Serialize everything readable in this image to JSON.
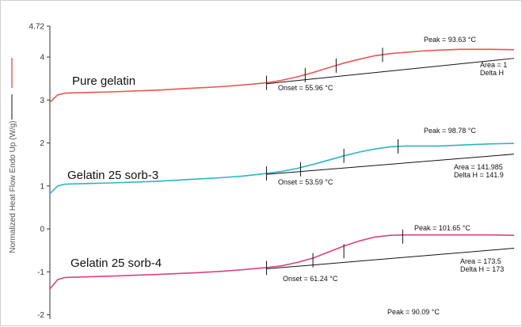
{
  "colors": {
    "pure_gelatin": "#e8564f",
    "sorb3": "#2bb5c4",
    "sorb4": "#e0407e",
    "baseline": "#111111"
  },
  "chart_data": {
    "type": "line",
    "ylabel": "Normalized Heat Flow Endo Up (W/g)",
    "ylim": [
      -2.1,
      4.72
    ],
    "y_ticks": [
      "4.72",
      "4",
      "3",
      "2",
      "1",
      "0",
      "-1",
      "-2"
    ],
    "y_tick_values": [
      4.72,
      4,
      3,
      2,
      1,
      0,
      -1,
      -2
    ],
    "x": [
      0,
      5,
      10,
      40,
      70,
      95,
      110,
      125,
      140,
      150,
      160,
      170,
      180,
      190,
      200,
      210,
      220,
      230,
      240,
      250,
      265,
      285,
      300
    ],
    "series": [
      {
        "label": "Pure gelatin",
        "color_key": "pure_gelatin",
        "values": [
          2.95,
          3.12,
          3.16,
          3.19,
          3.23,
          3.28,
          3.31,
          3.35,
          3.4,
          3.46,
          3.54,
          3.64,
          3.75,
          3.86,
          3.95,
          4.03,
          4.08,
          4.11,
          4.14,
          4.16,
          4.18,
          4.18,
          4.17
        ],
        "baseline": {
          "x": [
            140,
            300
          ],
          "y": [
            3.38,
            3.97
          ]
        },
        "markers": [
          {
            "x": 140,
            "y": 3.4
          },
          {
            "x": 165,
            "y": 3.58
          },
          {
            "x": 185,
            "y": 3.8
          },
          {
            "x": 215,
            "y": 4.05
          }
        ],
        "onset": {
          "label": "Onset = 55.96 °C"
        },
        "peak": {
          "label": "Peak = 93.63 °C"
        },
        "area": {
          "label": "Area = 1"
        },
        "delta_h": {
          "label": "Delta H"
        }
      },
      {
        "label": "Gelatin 25 sorb-3",
        "color_key": "sorb3",
        "values": [
          0.82,
          1.0,
          1.04,
          1.07,
          1.11,
          1.16,
          1.19,
          1.23,
          1.29,
          1.34,
          1.41,
          1.5,
          1.6,
          1.7,
          1.79,
          1.86,
          1.91,
          1.93,
          1.93,
          1.93,
          1.95,
          1.98,
          1.99
        ],
        "baseline": {
          "x": [
            140,
            300
          ],
          "y": [
            1.27,
            1.74
          ]
        },
        "markers": [
          {
            "x": 140,
            "y": 1.29
          },
          {
            "x": 162,
            "y": 1.39
          },
          {
            "x": 190,
            "y": 1.7
          },
          {
            "x": 225,
            "y": 1.92
          }
        ],
        "onset": {
          "label": "Onset = 53.59 °C"
        },
        "peak": {
          "label": "Peak = 98.78 °C"
        },
        "area": {
          "label": "Area = 141.985"
        },
        "delta_h": {
          "label": "Delta H = 141.9"
        }
      },
      {
        "label": "Gelatin 25 sorb-4",
        "color_key": "sorb4",
        "values": [
          -1.4,
          -1.18,
          -1.13,
          -1.1,
          -1.06,
          -1.02,
          -0.99,
          -0.95,
          -0.9,
          -0.86,
          -0.78,
          -0.68,
          -0.54,
          -0.4,
          -0.28,
          -0.19,
          -0.15,
          -0.14,
          -0.14,
          -0.14,
          -0.14,
          -0.14,
          -0.15
        ],
        "baseline": {
          "x": [
            140,
            300
          ],
          "y": [
            -0.93,
            -0.45
          ]
        },
        "markers": [
          {
            "x": 140,
            "y": -0.91
          },
          {
            "x": 170,
            "y": -0.73
          },
          {
            "x": 190,
            "y": -0.52
          },
          {
            "x": 228,
            "y": -0.18
          }
        ],
        "onset": {
          "label": "Onset = 61.24 °C"
        },
        "peak": {
          "label": "Peak = 101.65 °C"
        },
        "area": {
          "label": "Area = 173.5"
        },
        "delta_h": {
          "label": "Delta H = 173"
        },
        "peak2": {
          "label": "Peak = 90.09 °C"
        }
      }
    ]
  }
}
